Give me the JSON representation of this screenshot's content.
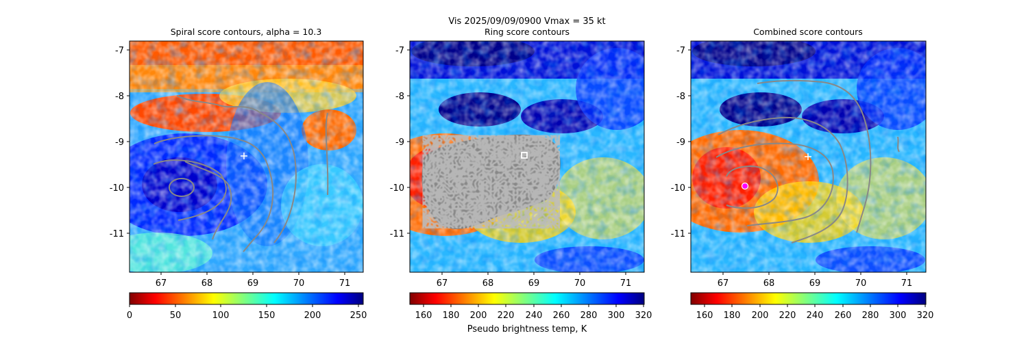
{
  "suptitle": "Vis  2025/09/09/0900    Vmax = 35 kt",
  "colorbar_label": "Pseudo brightness temp, K",
  "chart_data": [
    {
      "type": "heatmap",
      "title": "Spiral score contours, alpha = 10.3",
      "x_ticks": [
        "67",
        "68",
        "69",
        "70",
        "71"
      ],
      "y_ticks": [
        "-7",
        "-8",
        "-9",
        "-10",
        "-11"
      ],
      "xlim": [
        66.3,
        71.4
      ],
      "ylim": [
        -11.85,
        -6.8
      ],
      "colorbar": {
        "ticks": [
          "0",
          "50",
          "100",
          "150",
          "200",
          "250"
        ],
        "range": [
          0,
          255
        ],
        "colormap": "jet_r"
      },
      "markers": [
        {
          "type": "plus",
          "x": 68.85,
          "y": -9.32,
          "color": "#ffffff"
        }
      ]
    },
    {
      "type": "heatmap",
      "title": "Ring score contours",
      "x_ticks": [
        "67",
        "68",
        "69",
        "70",
        "71"
      ],
      "y_ticks": [
        "-7",
        "-8",
        "-9",
        "-10",
        "-11"
      ],
      "xlim": [
        66.3,
        71.4
      ],
      "ylim": [
        -11.85,
        -6.8
      ],
      "colorbar": {
        "ticks": [
          "160",
          "180",
          "200",
          "220",
          "240",
          "260",
          "280",
          "300",
          "320"
        ],
        "range": [
          150,
          320
        ],
        "colormap": "jet_r"
      },
      "markers": [
        {
          "type": "square",
          "x": 68.8,
          "y": -9.32,
          "color": "#ffffff"
        }
      ]
    },
    {
      "type": "heatmap",
      "title": "Combined score contours",
      "x_ticks": [
        "67",
        "68",
        "69",
        "70",
        "71"
      ],
      "y_ticks": [
        "-7",
        "-8",
        "-9",
        "-10",
        "-11"
      ],
      "xlim": [
        66.3,
        71.4
      ],
      "ylim": [
        -11.85,
        -6.8
      ],
      "colorbar": {
        "ticks": [
          "160",
          "180",
          "200",
          "220",
          "240",
          "260",
          "280",
          "300",
          "320"
        ],
        "range": [
          150,
          320
        ],
        "colormap": "jet_r"
      },
      "markers": [
        {
          "type": "circle",
          "x": 67.48,
          "y": -9.98,
          "color": "#ff00ff"
        },
        {
          "type": "plus",
          "x": 68.85,
          "y": -9.32,
          "color": "#ffffff"
        }
      ]
    }
  ]
}
